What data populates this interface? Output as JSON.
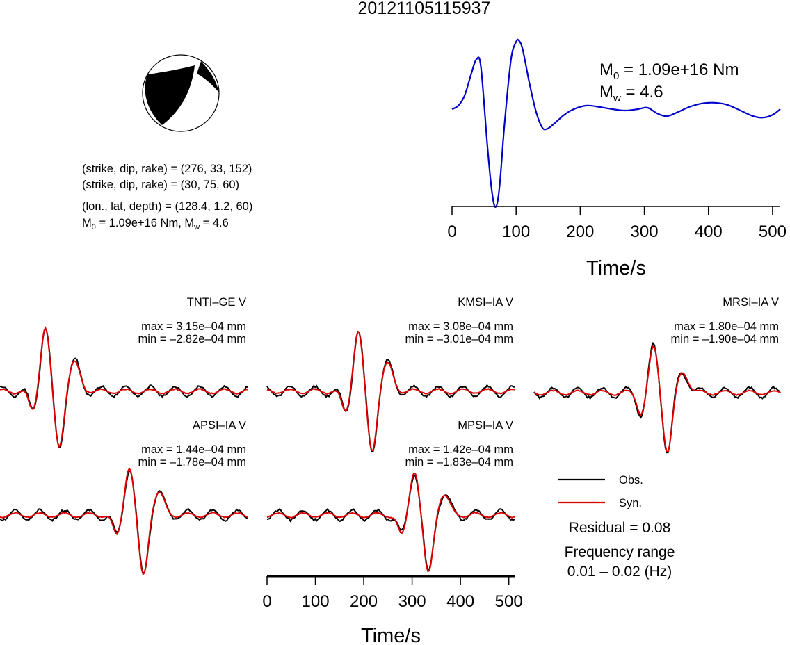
{
  "title": "20121105115937",
  "mechanism": {
    "line1": "(strike, dip, rake) = (276, 33, 152)",
    "line2": "(strike, dip, rake) = (30, 75, 60)",
    "line3": "(lon., lat, depth) = (128.4, 1.2, 60)",
    "line4_prefix": "M",
    "line4_sub": "0",
    "line4_rest": " = 1.09e+16 Nm, M",
    "line4_sub2": "w",
    "line4_end": " = 4.6"
  },
  "stf": {
    "m0_prefix": "M",
    "m0_sub": "0",
    "m0_rest": " = 1.09e+16 Nm",
    "mw_prefix": "M",
    "mw_sub": "w",
    "mw_rest": " = 4.6",
    "xlabel": "Time/s",
    "xticks": [
      0,
      100,
      200,
      300,
      400,
      500
    ],
    "color": "#0000cc"
  },
  "stations": [
    {
      "name": "TNTI–GE V",
      "max": "max = 3.15e–04 mm",
      "min": "min = –2.82e–04 mm"
    },
    {
      "name": "KMSI–IA V",
      "max": "max = 3.08e–04 mm",
      "min": "min = –3.01e–04 mm"
    },
    {
      "name": "MRSI–IA V",
      "max": "max = 1.80e–04 mm",
      "min": "min = –1.90e–04 mm"
    },
    {
      "name": "APSI–IA V",
      "max": "max = 1.44e–04 mm",
      "min": "min = –1.78e–04 mm"
    },
    {
      "name": "MPSI–IA V",
      "max": "max = 1.42e–04 mm",
      "min": "min = –1.83e–04 mm"
    }
  ],
  "legend": {
    "obs": "Obs.",
    "syn": "Syn.",
    "obs_color": "#000000",
    "syn_color": "#dd0000"
  },
  "residual": "Residual = 0.08",
  "freq_line1": "Frequency range",
  "freq_line2": "0.01 – 0.02 (Hz)",
  "bottom_axis": {
    "xlabel": "Time/s",
    "xticks": [
      0,
      100,
      200,
      300,
      400,
      500
    ]
  },
  "chart_data": [
    {
      "type": "line",
      "xlabel": "Time/s",
      "xlim": [
        0,
        512
      ],
      "series": [
        {
          "color": "#0000cc",
          "x": [
            0,
            10,
            20,
            30,
            38,
            45,
            55,
            62,
            68,
            74,
            82,
            92,
            100,
            104,
            110,
            120,
            130,
            140,
            148,
            160,
            175,
            190,
            210,
            230,
            250,
            270,
            290,
            305,
            320,
            335,
            350,
            370,
            390,
            410,
            430,
            450,
            470,
            485,
            500,
            512
          ],
          "y": [
            0.0,
            0.05,
            0.2,
            0.5,
            0.7,
            0.6,
            -0.5,
            -1.15,
            -1.38,
            -1.1,
            -0.2,
            0.7,
            0.95,
            0.97,
            0.85,
            0.4,
            0.0,
            -0.25,
            -0.28,
            -0.2,
            -0.08,
            0.0,
            0.05,
            0.03,
            0.0,
            -0.02,
            0.0,
            0.02,
            -0.06,
            -0.1,
            -0.05,
            0.03,
            0.08,
            0.09,
            0.06,
            -0.02,
            -0.1,
            -0.12,
            -0.08,
            0.0
          ]
        }
      ]
    }
  ]
}
